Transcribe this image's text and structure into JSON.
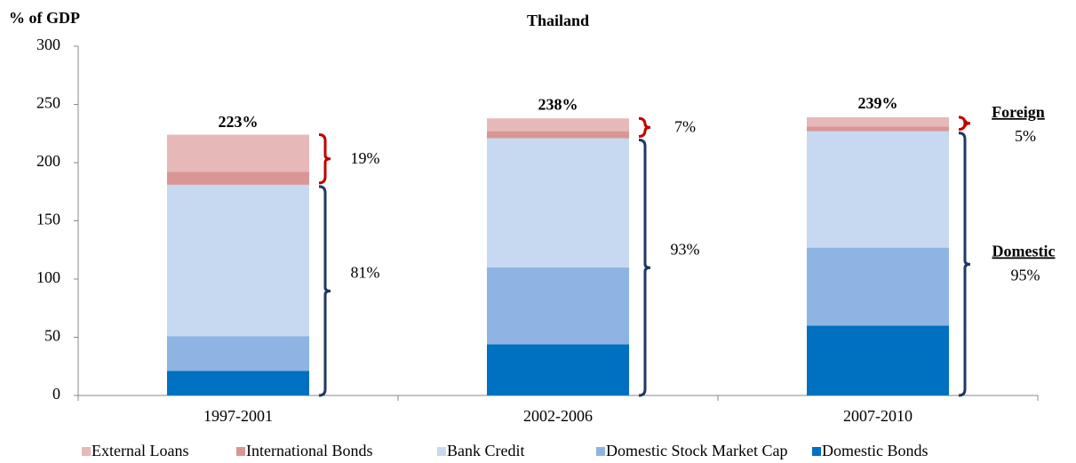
{
  "chart_data": {
    "type": "stacked_bar",
    "title": "Thailand",
    "y_label": "% of GDP",
    "categories": [
      "1997-2001",
      "2002-2006",
      "2007-2010"
    ],
    "series": [
      {
        "name": "Domestic Bonds",
        "color": "#0070c0",
        "values": [
          21,
          44,
          60
        ]
      },
      {
        "name": "Domestic Stock Market Cap",
        "color": "#8eb4e3",
        "values": [
          30,
          66,
          67
        ]
      },
      {
        "name": "Bank Credit",
        "color": "#c6d9f1",
        "values": [
          130,
          111,
          100
        ]
      },
      {
        "name": "International Bonds",
        "color": "#d99694",
        "values": [
          11,
          6,
          4
        ]
      },
      {
        "name": "External Loans",
        "color": "#e6b9b8",
        "values": [
          32,
          11,
          8
        ]
      }
    ],
    "legend_order": [
      4,
      3,
      2,
      1,
      0
    ],
    "totals": {
      "values": [
        223,
        238,
        239
      ],
      "value_labels": [
        "223%",
        "238%",
        "239%"
      ]
    },
    "foreign_share": {
      "label": "Foreign",
      "color": "#c00000",
      "values": [
        19,
        7,
        5
      ],
      "value_labels": [
        "19%",
        "7%",
        "5%"
      ]
    },
    "domestic_share": {
      "label": "Domestic",
      "color": "#1f3864",
      "values": [
        81,
        93,
        95
      ],
      "value_labels": [
        "81%",
        "93%",
        "95%"
      ]
    },
    "ylim": [
      0,
      300
    ],
    "yticks": [
      0,
      50,
      100,
      150,
      200,
      250,
      300
    ],
    "grid": false
  }
}
